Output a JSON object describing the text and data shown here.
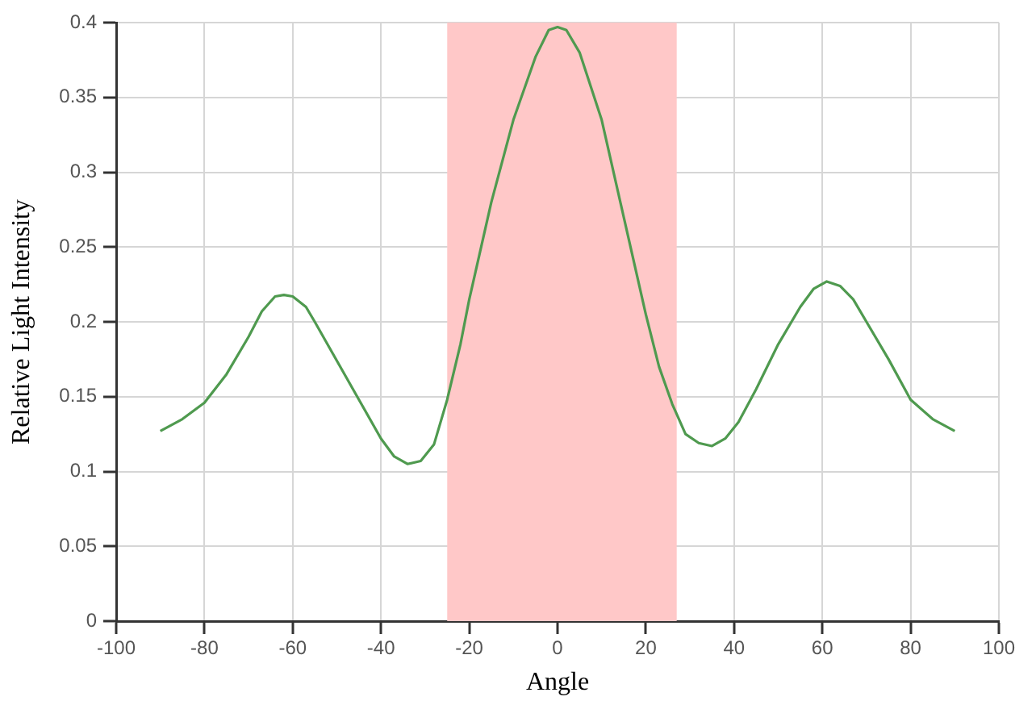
{
  "chart_data": {
    "type": "line",
    "xlabel": "Angle",
    "ylabel": "Relative Light Intensity",
    "xlim": [
      -100,
      100
    ],
    "xticks": [
      -100,
      -80,
      -60,
      -40,
      -20,
      0,
      20,
      40,
      60,
      80,
      100
    ],
    "ylim": [
      0,
      0.4
    ],
    "yticks": [
      0,
      0.05,
      0.1,
      0.15,
      0.2,
      0.25,
      0.3,
      0.35,
      0.4
    ],
    "grid": true,
    "legend": false,
    "marker": "none",
    "line_style": "solid",
    "bands": [
      {
        "axis": "x",
        "from": -25,
        "to": 27,
        "color": "#ffc8c8"
      }
    ],
    "x": [
      -90,
      -85,
      -80,
      -75,
      -70,
      -67,
      -64,
      -62,
      -60,
      -57,
      -55,
      -50,
      -45,
      -40,
      -37,
      -34,
      -31,
      -28,
      -25,
      -22,
      -20,
      -15,
      -10,
      -5,
      -2,
      0,
      2,
      5,
      10,
      15,
      20,
      23,
      26,
      29,
      32,
      35,
      38,
      41,
      45,
      50,
      55,
      58,
      61,
      64,
      67,
      70,
      75,
      80,
      85,
      90
    ],
    "series": [
      {
        "color": "#4f9a4f",
        "values": [
          0.127,
          0.135,
          0.146,
          0.165,
          0.19,
          0.207,
          0.217,
          0.218,
          0.217,
          0.21,
          0.2,
          0.174,
          0.148,
          0.122,
          0.11,
          0.105,
          0.107,
          0.118,
          0.148,
          0.185,
          0.215,
          0.28,
          0.335,
          0.377,
          0.395,
          0.397,
          0.395,
          0.38,
          0.335,
          0.27,
          0.205,
          0.17,
          0.145,
          0.125,
          0.119,
          0.117,
          0.122,
          0.133,
          0.155,
          0.185,
          0.21,
          0.222,
          0.227,
          0.224,
          0.215,
          0.2,
          0.175,
          0.148,
          0.135,
          0.127
        ]
      }
    ]
  }
}
